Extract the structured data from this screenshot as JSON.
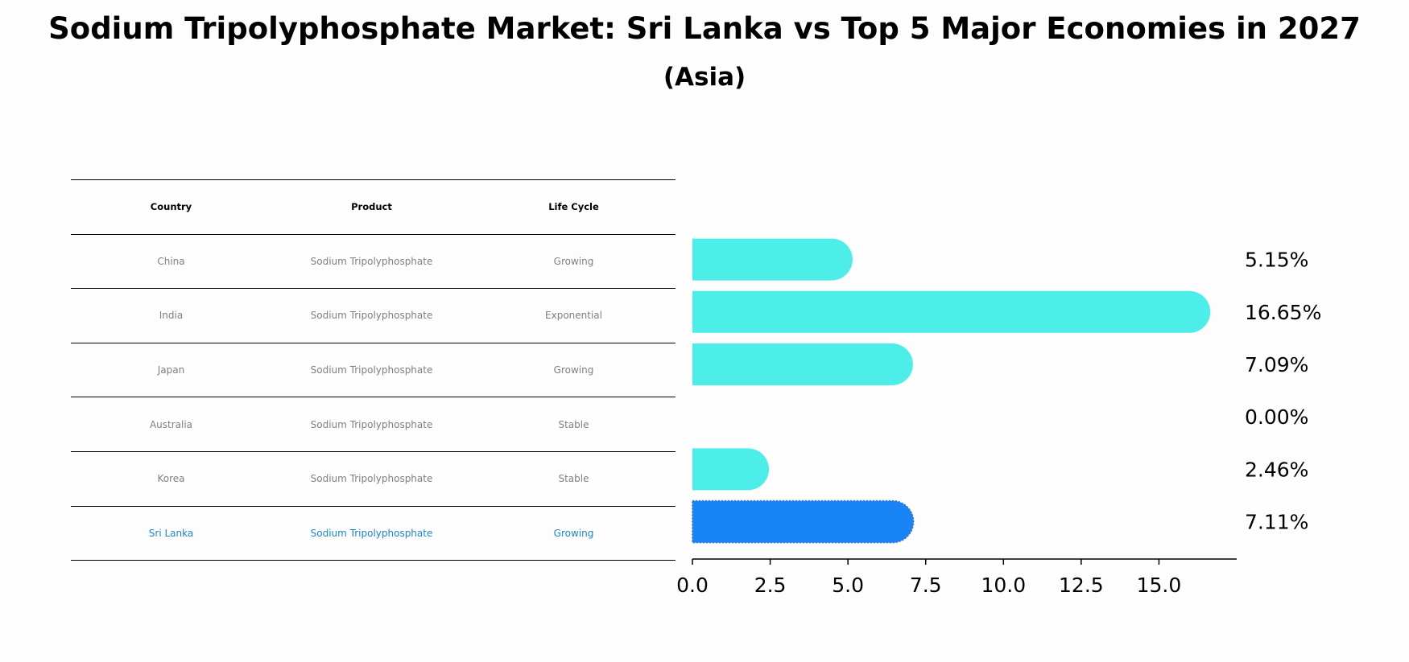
{
  "title": "Sodium Tripolyphosphate Market: Sri Lanka vs Top 5 Major Economies in 2027",
  "subtitle": "(Asia)",
  "table": {
    "headers": [
      "Country",
      "Product",
      "Life Cycle"
    ],
    "rows": [
      [
        "China",
        "Sodium Tripolyphosphate",
        "Growing"
      ],
      [
        "India",
        "Sodium Tripolyphosphate",
        "Exponential"
      ],
      [
        "Japan",
        "Sodium Tripolyphosphate",
        "Growing"
      ],
      [
        "Australia",
        "Sodium Tripolyphosphate",
        "Stable"
      ],
      [
        "Korea",
        "Sodium Tripolyphosphate",
        "Stable"
      ],
      [
        "Sri Lanka",
        "Sodium Tripolyphosphate",
        "Growing"
      ]
    ]
  },
  "colors": {
    "bar": "#4deeea",
    "highlight_bar": "#1884f5",
    "highlight_text": "#1a86d6",
    "row_text": "#808080"
  },
  "chart_data": {
    "type": "bar",
    "orientation": "horizontal",
    "categories": [
      "China",
      "India",
      "Japan",
      "Australia",
      "Korea",
      "Sri Lanka"
    ],
    "values": [
      5.15,
      16.65,
      7.09,
      0.0,
      2.46,
      7.11
    ],
    "value_labels": [
      "5.15%",
      "16.65%",
      "7.09%",
      "0.00%",
      "2.46%",
      "7.11%"
    ],
    "highlight": "Sri Lanka",
    "xlim": [
      0,
      17.5
    ],
    "xticks": [
      0.0,
      2.5,
      5.0,
      7.5,
      10.0,
      12.5,
      15.0
    ],
    "xtick_labels": [
      "0.0",
      "2.5",
      "5.0",
      "7.5",
      "10.0",
      "12.5",
      "15.0"
    ],
    "xlabel": "",
    "ylabel": ""
  }
}
